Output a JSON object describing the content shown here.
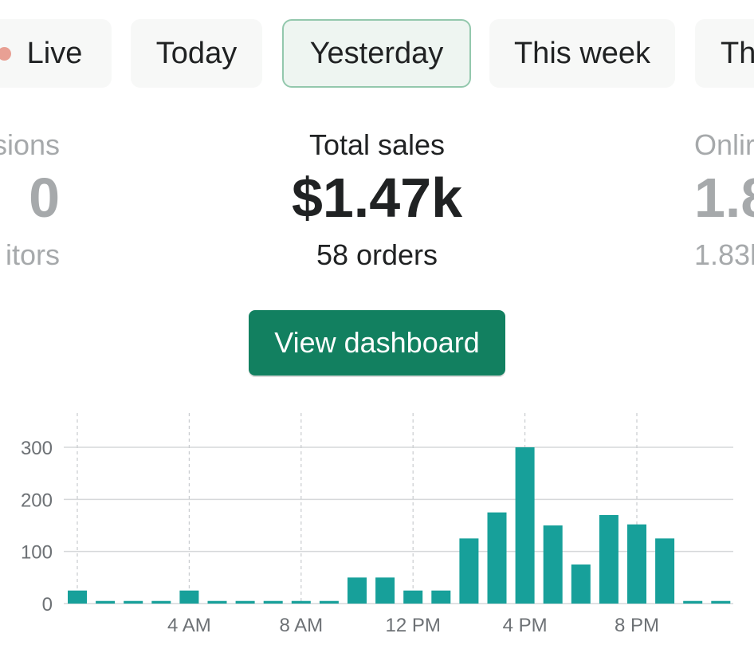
{
  "tabs": [
    {
      "label": "Live",
      "selected": false,
      "dot_color": "#e8a094"
    },
    {
      "label": "Today",
      "selected": false
    },
    {
      "label": "Yesterday",
      "selected": true
    },
    {
      "label": "This week",
      "selected": false
    },
    {
      "label": "Th",
      "selected": false
    }
  ],
  "metrics": {
    "left": {
      "label": "sions",
      "value": "0",
      "sub": "itors"
    },
    "main": {
      "label": "Total sales",
      "value": "$1.47k",
      "sub": "58 orders"
    },
    "right": {
      "label": "Onlir",
      "value": "1.8",
      "sub": "1.83l"
    }
  },
  "view_dashboard_label": "View dashboard",
  "colors": {
    "accent": "#128060",
    "bar": "#17a09a",
    "selected_border": "#93c8ad"
  },
  "chart_data": {
    "type": "bar",
    "categories": [
      "0",
      "1",
      "2",
      "3",
      "4",
      "5",
      "6",
      "7",
      "8",
      "9",
      "10",
      "11",
      "12",
      "13",
      "14",
      "15",
      "16",
      "17",
      "18",
      "19",
      "20",
      "21",
      "22",
      "23"
    ],
    "values": [
      25,
      5,
      5,
      5,
      25,
      5,
      5,
      5,
      5,
      5,
      50,
      50,
      25,
      25,
      125,
      175,
      300,
      150,
      75,
      170,
      152,
      125,
      5,
      5
    ],
    "x_tick_labels": [
      {
        "index": 4,
        "label": "4 AM"
      },
      {
        "index": 8,
        "label": "8 AM"
      },
      {
        "index": 12,
        "label": "12 PM"
      },
      {
        "index": 16,
        "label": "4 PM"
      },
      {
        "index": 20,
        "label": "8 PM"
      }
    ],
    "y_ticks": [
      0,
      100,
      200,
      300
    ],
    "ylim": [
      0,
      300
    ],
    "grid": true
  }
}
